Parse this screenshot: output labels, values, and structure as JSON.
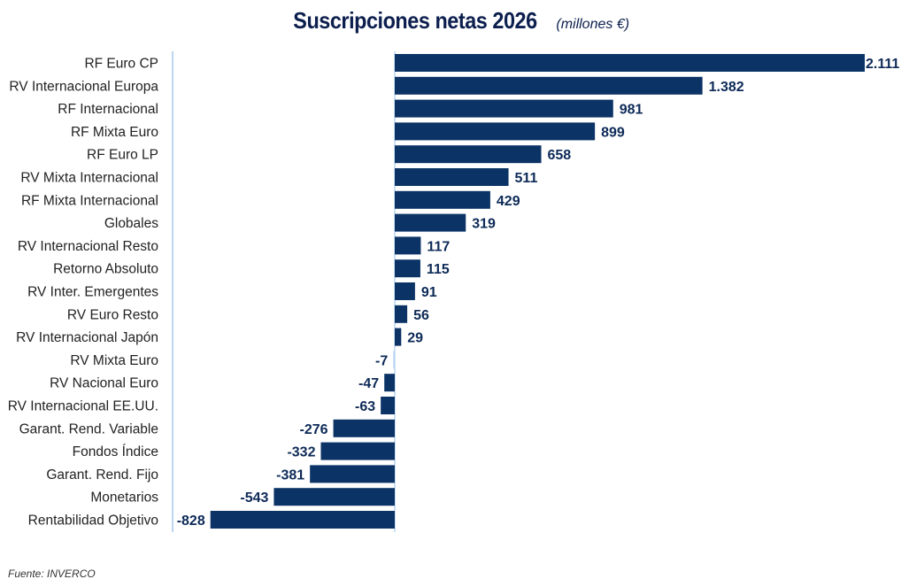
{
  "chart_data": {
    "type": "bar",
    "orientation": "horizontal",
    "title": "Suscripciones netas 2026",
    "subtitle": "(millones €)",
    "xlabel": "",
    "ylabel": "",
    "grid": false,
    "legend": "none",
    "xlim": [
      -828,
      2111
    ],
    "bar_color": "#0b3366",
    "axis_color": "#bcd6f2",
    "categories": [
      "RF Euro CP",
      "RV Internacional Europa",
      "RF Internacional",
      "RF Mixta Euro",
      "RF Euro LP",
      "RV Mixta Internacional",
      "RF Mixta Internacional",
      "Globales",
      "RV Internacional Resto",
      "Retorno Absoluto",
      "RV Inter. Emergentes",
      "RV Euro Resto",
      "RV Internacional Japón",
      "RV Mixta Euro",
      "RV Nacional Euro",
      "RV Internacional EE.UU.",
      "Garant. Rend. Variable",
      "Fondos Índice",
      "Garant. Rend. Fijo",
      "Monetarios",
      "Rentabilidad Objetivo"
    ],
    "values": [
      2111,
      1382,
      981,
      899,
      658,
      511,
      429,
      319,
      117,
      115,
      91,
      56,
      29,
      -7,
      -47,
      -63,
      -276,
      -332,
      -381,
      -543,
      -828
    ],
    "value_labels": [
      "2.111",
      "1.382",
      "981",
      "899",
      "658",
      "511",
      "429",
      "319",
      "117",
      "115",
      "91",
      "56",
      "29",
      "-7",
      "-47",
      "-63",
      "-276",
      "-332",
      "-381",
      "-543",
      "-828"
    ]
  },
  "source": "Fuente: INVERCO"
}
